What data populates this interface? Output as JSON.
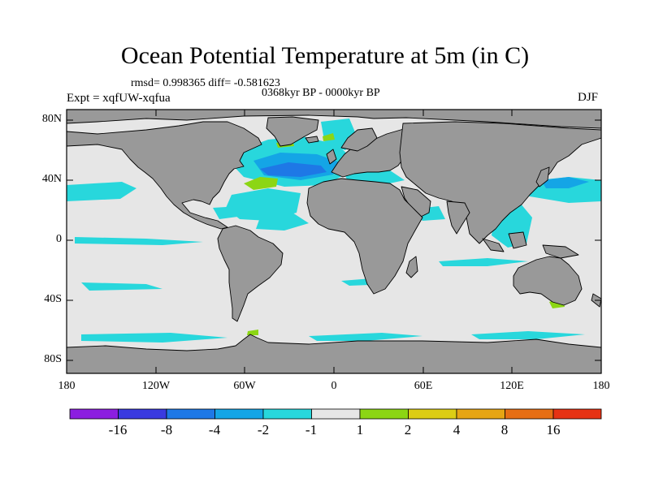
{
  "title": "Ocean Potential Temperature at 5m (in C)",
  "stats": "rmsd= 0.998365 diff= -0.581623",
  "period": "0368kyr BP - 0000kyr BP",
  "experiment": "Expt = xqfUW-xqfua",
  "season": "DJF",
  "map": {
    "y_axis_labels": [
      "80N",
      "40N",
      "0",
      "40S",
      "80S"
    ],
    "x_axis_labels": [
      "180",
      "120W",
      "60W",
      "0",
      "60E",
      "120E",
      "180"
    ],
    "land_color": "#999999",
    "ocean_color": "#e6e6e6"
  },
  "colorbar": {
    "colors": [
      "#8c1ee0",
      "#3a3ae0",
      "#1e78e6",
      "#14a5e6",
      "#28d7dc",
      "#e6e6e6",
      "#8cd614",
      "#dccd14",
      "#e6a514",
      "#e66e14",
      "#e63214"
    ],
    "labels": [
      "-16",
      "-8",
      "-4",
      "-2",
      "-1",
      "1",
      "2",
      "4",
      "8",
      "16"
    ]
  }
}
